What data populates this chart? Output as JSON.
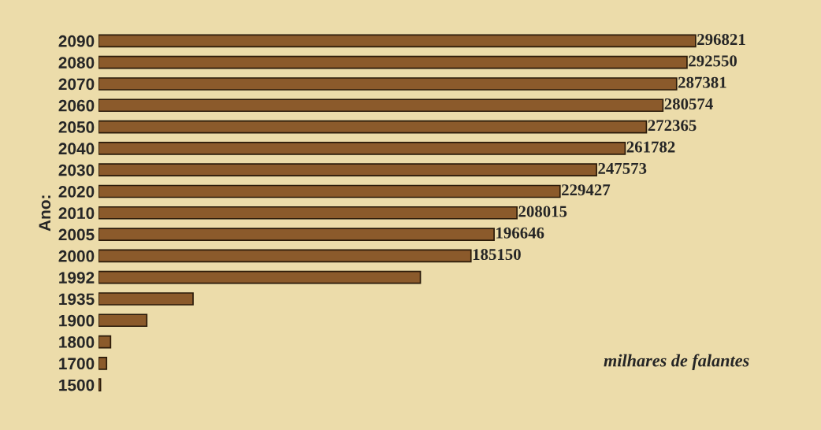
{
  "chart_data": {
    "type": "bar",
    "orientation": "horizontal",
    "ylabel": "Ano:",
    "categories": [
      "2090",
      "2080",
      "2070",
      "2060",
      "2050",
      "2040",
      "2030",
      "2020",
      "2010",
      "2005",
      "2000",
      "1992",
      "1935",
      "1900",
      "1800",
      "1700",
      "1500"
    ],
    "values": [
      296821,
      292550,
      287381,
      280574,
      272365,
      261782,
      247573,
      229427,
      208015,
      196646,
      185150,
      160000,
      47000,
      24000,
      6000,
      4000,
      1000
    ],
    "value_labels": [
      "296821",
      "292550",
      "287381",
      "280574",
      "272365",
      "261782",
      "247573",
      "229427",
      "208015",
      "196646",
      "185150",
      null,
      null,
      null,
      null,
      null,
      null
    ],
    "color": "#8b5a2b",
    "annotations": [
      "milhares de falantes"
    ]
  }
}
